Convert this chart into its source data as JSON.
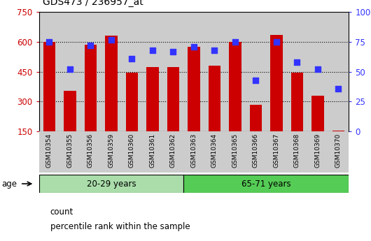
{
  "title": "GDS473 / 236957_at",
  "samples": [
    "GSM10354",
    "GSM10355",
    "GSM10356",
    "GSM10359",
    "GSM10360",
    "GSM10361",
    "GSM10362",
    "GSM10363",
    "GSM10364",
    "GSM10365",
    "GSM10366",
    "GSM10367",
    "GSM10368",
    "GSM10369",
    "GSM10370"
  ],
  "counts": [
    600,
    355,
    585,
    630,
    445,
    475,
    475,
    575,
    480,
    600,
    285,
    635,
    445,
    330,
    155
  ],
  "percentiles": [
    75,
    52,
    72,
    77,
    61,
    68,
    67,
    71,
    68,
    75,
    43,
    75,
    58,
    52,
    36
  ],
  "ylim_left": [
    150,
    750
  ],
  "ylim_right": [
    0,
    100
  ],
  "yticks_left": [
    150,
    300,
    450,
    600,
    750
  ],
  "yticks_right": [
    0,
    25,
    50,
    75,
    100
  ],
  "group1_label": "20-29 years",
  "group2_label": "65-71 years",
  "group1_count": 7,
  "group2_count": 8,
  "age_label": "age",
  "bar_color": "#cc0000",
  "dot_color": "#3333ff",
  "col_bg_even": "#cccccc",
  "col_bg_odd": "#cccccc",
  "group1_color": "#aaddaa",
  "group2_color": "#55cc55",
  "legend_count_label": "count",
  "legend_pct_label": "percentile rank within the sample",
  "left_axis_color": "#cc0000",
  "right_axis_color": "#3333ff",
  "grid_lines": [
    300,
    450,
    600
  ],
  "bar_width": 0.6
}
